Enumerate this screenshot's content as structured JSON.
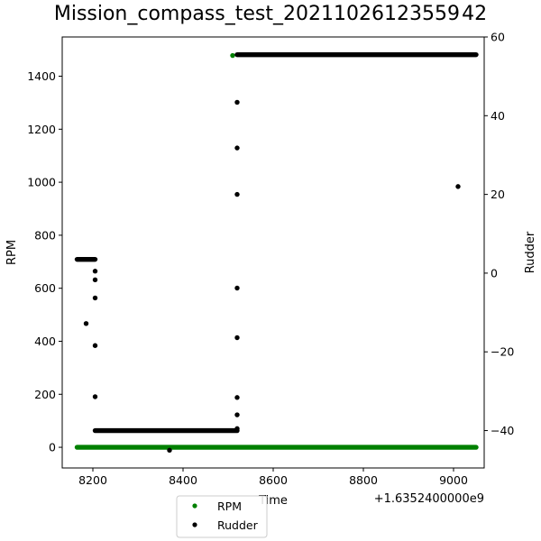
{
  "chart_data": {
    "type": "scatter",
    "title": "Mission_compass_test_20211026123559 42",
    "xlabel": "Time",
    "x_offset_label": "+1.6352400000e9",
    "ylabel_left": "RPM",
    "ylabel_right": "Rudder",
    "xlim": [
      8132,
      9068
    ],
    "ylim_left": [
      -78,
      1548
    ],
    "ylim_right": [
      -49.5,
      60
    ],
    "x_ticks": [
      8200,
      8400,
      8600,
      8800,
      9000
    ],
    "y_ticks_left": [
      0,
      200,
      400,
      600,
      800,
      1000,
      1200,
      1400
    ],
    "y_ticks_right": [
      -40,
      -20,
      0,
      20,
      40,
      60
    ],
    "y_tick_labels_right": [
      "−40",
      "−20",
      "0",
      "20",
      "40",
      "60"
    ],
    "grid": false,
    "legend_position": "bottom-left, below axes",
    "series": [
      {
        "name": "RPM",
        "axis": "left",
        "color": "#008000",
        "segments": [
          {
            "x_start": 8165,
            "x_end": 9050,
            "y": 0
          }
        ],
        "points": [
          {
            "x": 8510,
            "y": 1478
          }
        ]
      },
      {
        "name": "Rudder",
        "axis": "right",
        "color": "#000000",
        "segments": [
          {
            "x_start": 8165,
            "x_end": 8205,
            "y": 3.5
          },
          {
            "x_start": 8205,
            "x_end": 8520,
            "y": -40
          },
          {
            "x_start": 8520,
            "x_end": 9050,
            "y": 55.5
          }
        ],
        "points": [
          {
            "x": 8185,
            "y": -12.8
          },
          {
            "x": 8205,
            "y": 0.5
          },
          {
            "x": 8205,
            "y": -1.7
          },
          {
            "x": 8205,
            "y": -6.3
          },
          {
            "x": 8205,
            "y": -18.4
          },
          {
            "x": 8205,
            "y": -31.4
          },
          {
            "x": 8370,
            "y": -45
          },
          {
            "x": 8520,
            "y": 43.4
          },
          {
            "x": 8520,
            "y": 31.8
          },
          {
            "x": 8520,
            "y": 20
          },
          {
            "x": 8520,
            "y": -3.8
          },
          {
            "x": 8520,
            "y": -16.4
          },
          {
            "x": 8520,
            "y": -31.6
          },
          {
            "x": 8520,
            "y": -36
          },
          {
            "x": 8520,
            "y": -39.5
          },
          {
            "x": 9010,
            "y": 22
          }
        ]
      }
    ]
  }
}
